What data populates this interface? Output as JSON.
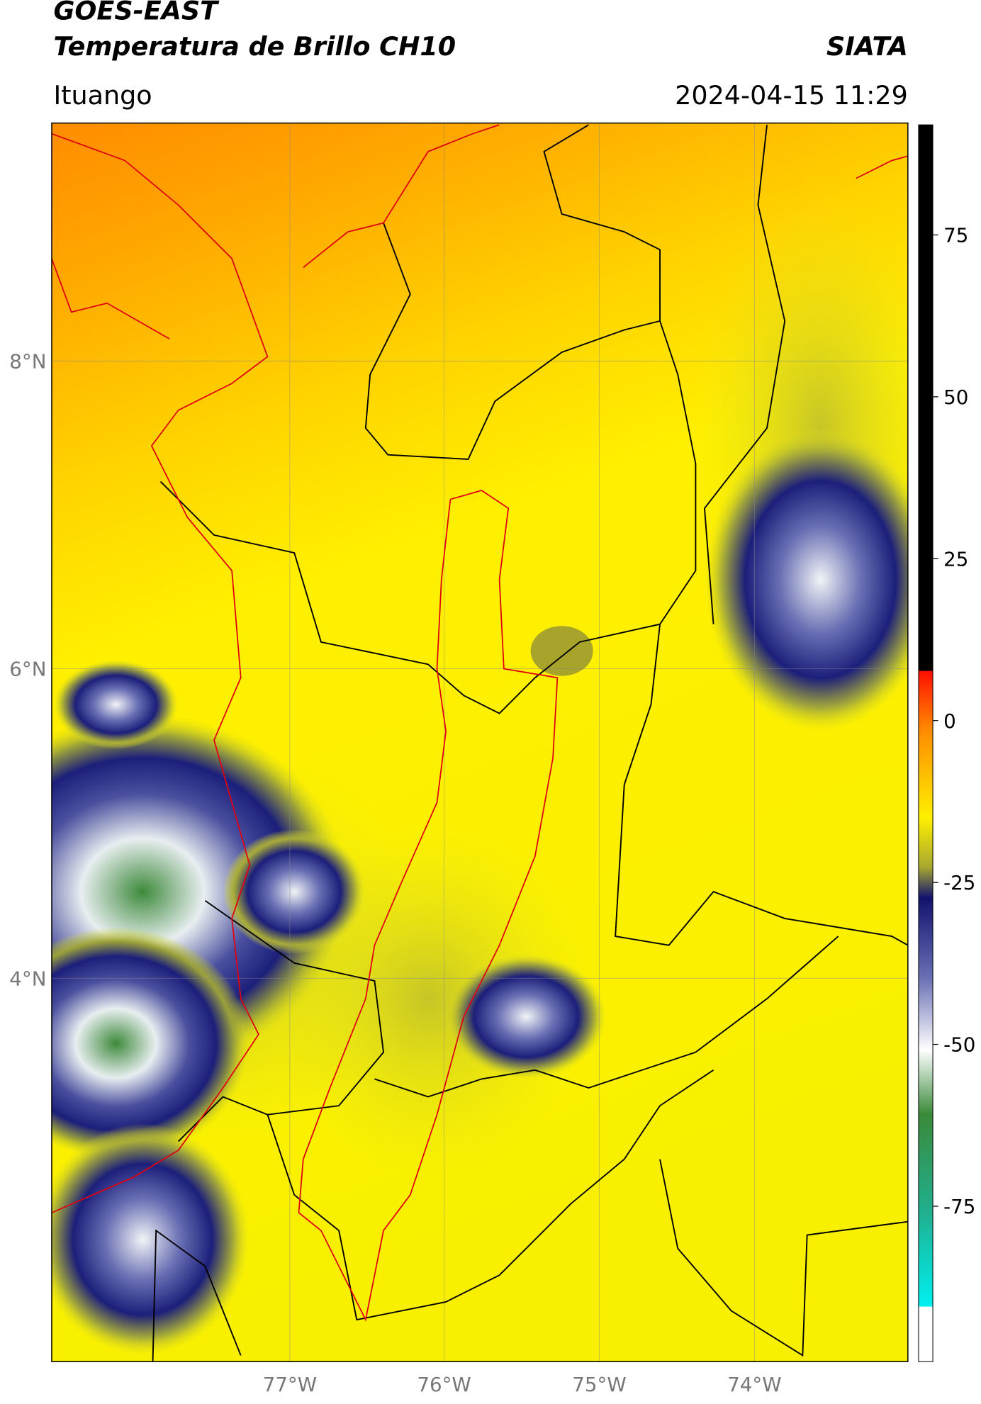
{
  "header": {
    "title": "GOES-EAST",
    "subtitle": "Temperatura de Brillo CH10",
    "brand": "SIATA",
    "location": "Ituango",
    "datetime": "2024-04-15 11:29"
  },
  "map": {
    "lat_labels": [
      "8°N",
      "6°N",
      "4°N"
    ],
    "lon_labels": [
      "77°W",
      "76°W",
      "75°W",
      "74°W"
    ]
  },
  "colorbar": {
    "range": [
      -99,
      92
    ],
    "ticks": [
      75,
      50,
      25,
      0,
      -25,
      -50,
      -75
    ]
  }
}
